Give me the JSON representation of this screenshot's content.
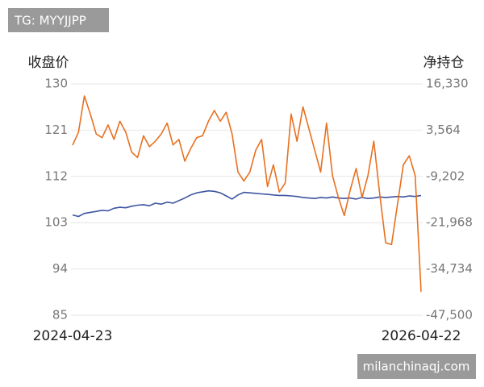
{
  "chart_data": {
    "type": "line",
    "y_label": "收盘价",
    "y2_label": "净持仓",
    "annotations": [
      "TG: MYYJJPP",
      "milanchinaqj.com"
    ],
    "categories": [
      "2024-04-23",
      null,
      null,
      null,
      null,
      null,
      null,
      null,
      null,
      null,
      null,
      null,
      null,
      null,
      null,
      null,
      null,
      null,
      null,
      null,
      null,
      null,
      null,
      null,
      null,
      null,
      null,
      null,
      null,
      null,
      null,
      null,
      null,
      null,
      null,
      null,
      null,
      null,
      null,
      null,
      null,
      null,
      null,
      null,
      null,
      null,
      null,
      null,
      null,
      null,
      null,
      null,
      null,
      null,
      null,
      null,
      null,
      null,
      null,
      "2026-04-22"
    ],
    "series": [
      {
        "name": "收盘价",
        "color": "#3d55a0",
        "values": [
          104.5,
          104.2,
          104.8,
          105,
          105.2,
          105.4,
          105.3,
          105.8,
          106,
          105.9,
          106.2,
          106.4,
          106.5,
          106.3,
          106.8,
          106.6,
          107,
          106.8,
          107.3,
          107.8,
          108.4,
          108.8,
          109,
          109.2,
          109.1,
          108.8,
          108.2,
          107.6,
          108.4,
          108.9,
          108.8,
          108.7,
          108.6,
          108.5,
          108.4,
          108.3,
          108.3,
          108.2,
          108.1,
          107.9,
          107.8,
          107.7,
          107.9,
          107.8,
          108,
          107.8,
          107.7,
          107.8,
          107.6,
          107.9,
          107.7,
          107.8,
          108,
          107.9,
          108,
          108.1,
          108,
          108.2,
          108.1,
          108.3
        ]
      },
      {
        "name": "净持仓",
        "color": "#e8701f",
        "axis": "y2",
        "values": [
          -600,
          3000,
          13000,
          8000,
          2500,
          1500,
          5000,
          1000,
          6000,
          3000,
          -2500,
          -4000,
          2000,
          -1000,
          500,
          2500,
          5500,
          -500,
          1000,
          -5000,
          -1500,
          1500,
          2000,
          6000,
          9000,
          6000,
          8500,
          2500,
          -8000,
          -10500,
          -8000,
          -2000,
          1000,
          -12000,
          -6000,
          -13500,
          -11000,
          8000,
          500,
          10000,
          4000,
          -2000,
          -8000,
          5500,
          -9000,
          -15000,
          -20000,
          -13000,
          -7000,
          -15000,
          -9000,
          500,
          -14000,
          -27500,
          -28000,
          -17000,
          -6000,
          -3500,
          -9000,
          -41000
        ]
      }
    ],
    "ylim": [
      85,
      130
    ],
    "yticks": [
      85,
      94,
      103,
      112,
      121,
      130
    ],
    "y2lim": [
      -47500,
      16330
    ],
    "y2ticks": [
      {
        "value": -47500,
        "label": "-47,500"
      },
      {
        "value": -34734,
        "label": "-34,734"
      },
      {
        "value": -21968,
        "label": "-21,968"
      },
      {
        "value": -9202,
        "label": "-9,202"
      },
      {
        "value": 3564,
        "label": "3,564"
      },
      {
        "value": 16330,
        "label": "16,330"
      }
    ],
    "grid": true
  }
}
